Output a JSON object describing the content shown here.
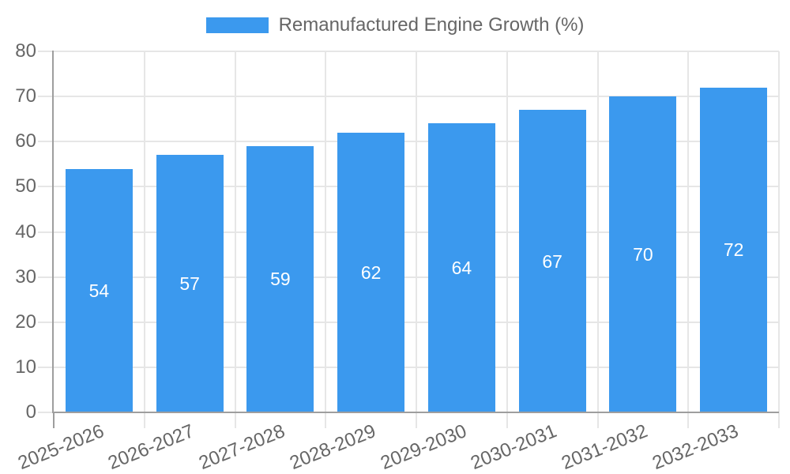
{
  "chart_data": {
    "type": "bar",
    "title": "Remanufactured Engine Growth (%)",
    "categories": [
      "2025-2026",
      "2026-2027",
      "2027-2028",
      "2028-2029",
      "2029-2030",
      "2030-2031",
      "2031-2032",
      "2032-2033"
    ],
    "values": [
      54,
      57,
      59,
      62,
      64,
      67,
      70,
      72
    ],
    "ylim": [
      0,
      80
    ],
    "yticks": [
      0,
      10,
      20,
      30,
      40,
      50,
      60,
      70,
      80
    ],
    "grid": true,
    "legend_position": "top",
    "colors": {
      "bar": "#3B99EE",
      "grid": "#E6E6E6",
      "axis": "#9E9E9E",
      "text": "#666666",
      "value_label": "#FFFFFF"
    }
  }
}
